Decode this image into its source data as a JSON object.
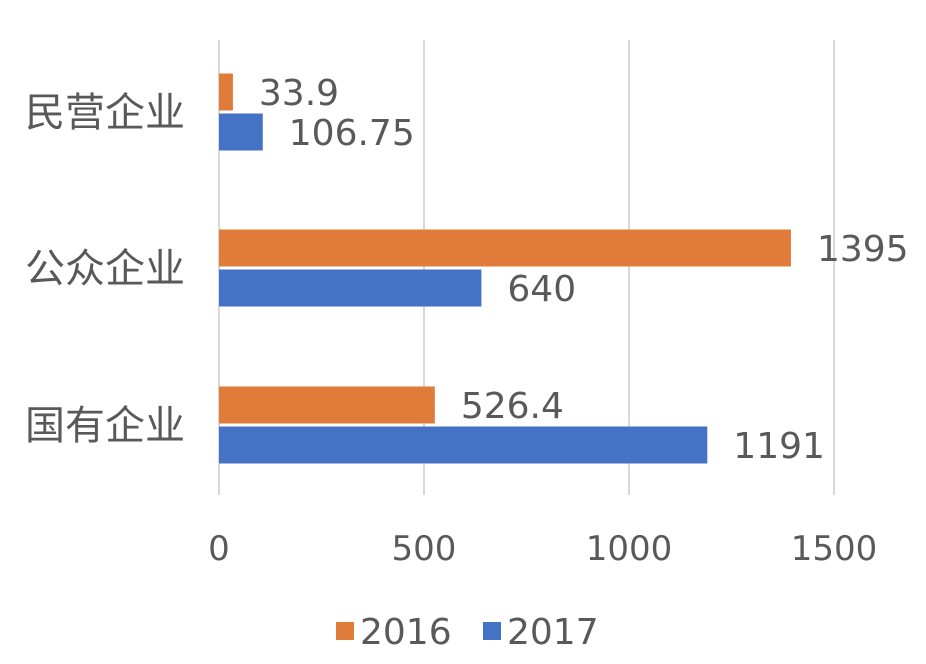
{
  "chart_data": {
    "type": "bar",
    "orientation": "horizontal",
    "categories": [
      "民营企业",
      "公众企业",
      "国有企业"
    ],
    "series": [
      {
        "name": "2016",
        "values": [
          33.9,
          1395,
          526.4
        ],
        "labels": [
          "33.9",
          "1395",
          "526.4"
        ],
        "color": "#E07B39"
      },
      {
        "name": "2017",
        "values": [
          106.75,
          640,
          1191
        ],
        "labels": [
          "106.75",
          "640",
          "1191"
        ],
        "color": "#4472C4"
      }
    ],
    "xlim": [
      0,
      1500
    ],
    "xticks": [
      0,
      500,
      1000,
      1500
    ],
    "xtick_labels": [
      "0",
      "500",
      "1000",
      "1500"
    ],
    "grid": true,
    "legend": "bottom"
  }
}
